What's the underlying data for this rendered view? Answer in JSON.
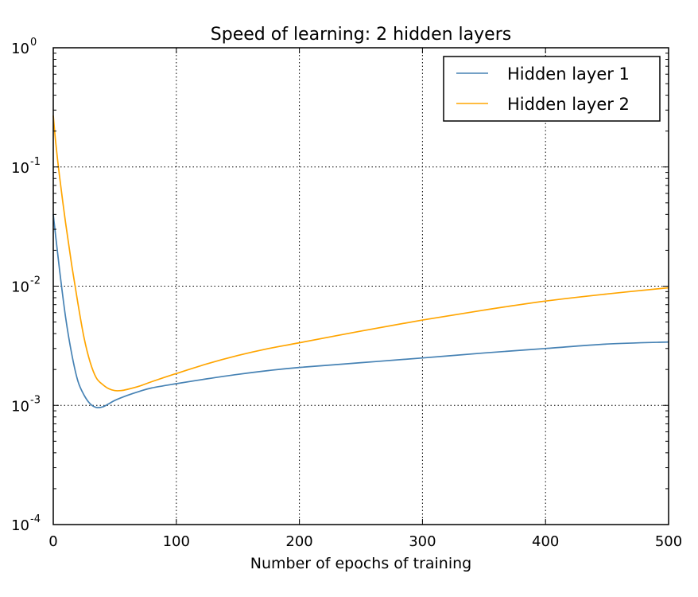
{
  "chart_data": {
    "type": "line",
    "title": "Speed of learning: 2 hidden layers",
    "xlabel": "Number of epochs of training",
    "ylabel": "",
    "xlim": [
      0,
      500
    ],
    "ylim": [
      0.0001,
      1
    ],
    "yscale": "log",
    "grid": true,
    "legend_position": "top-right",
    "x_ticks": [
      {
        "value": 0,
        "label": "0"
      },
      {
        "value": 100,
        "label": "100"
      },
      {
        "value": 200,
        "label": "200"
      },
      {
        "value": 300,
        "label": "300"
      },
      {
        "value": 400,
        "label": "400"
      },
      {
        "value": 500,
        "label": "500"
      }
    ],
    "y_ticks": [
      {
        "value": 0.0001,
        "base": "10",
        "exp": "-4"
      },
      {
        "value": 0.001,
        "base": "10",
        "exp": "-3"
      },
      {
        "value": 0.01,
        "base": "10",
        "exp": "-2"
      },
      {
        "value": 0.1,
        "base": "10",
        "exp": "-1"
      },
      {
        "value": 1,
        "base": "10",
        "exp": "0"
      }
    ],
    "series": [
      {
        "name": "Hidden layer 1",
        "color": "#4682b4",
        "x": [
          0,
          2,
          5,
          10,
          15,
          20,
          25,
          30,
          35,
          40,
          45,
          50,
          60,
          70,
          80,
          100,
          125,
          150,
          175,
          200,
          250,
          300,
          350,
          400,
          450,
          500
        ],
        "y": [
          0.04,
          0.026,
          0.014,
          0.0055,
          0.0027,
          0.0016,
          0.00122,
          0.00103,
          0.00096,
          0.00097,
          0.00103,
          0.0011,
          0.00121,
          0.00131,
          0.0014,
          0.00152,
          0.00167,
          0.00182,
          0.00196,
          0.00208,
          0.00228,
          0.0025,
          0.00275,
          0.003,
          0.00327,
          0.0034
        ]
      },
      {
        "name": "Hidden layer 2",
        "color": "#ffa500",
        "x": [
          0,
          2,
          5,
          10,
          15,
          20,
          25,
          30,
          35,
          40,
          45,
          50,
          55,
          60,
          70,
          80,
          100,
          125,
          150,
          175,
          200,
          250,
          300,
          350,
          400,
          450,
          500
        ],
        "y": [
          0.27,
          0.16,
          0.085,
          0.034,
          0.015,
          0.0072,
          0.0037,
          0.0023,
          0.0017,
          0.0015,
          0.00138,
          0.00133,
          0.00133,
          0.00136,
          0.00145,
          0.00158,
          0.00185,
          0.00223,
          0.00262,
          0.003,
          0.00335,
          0.0042,
          0.0052,
          0.0063,
          0.0075,
          0.0086,
          0.0097
        ]
      }
    ]
  }
}
